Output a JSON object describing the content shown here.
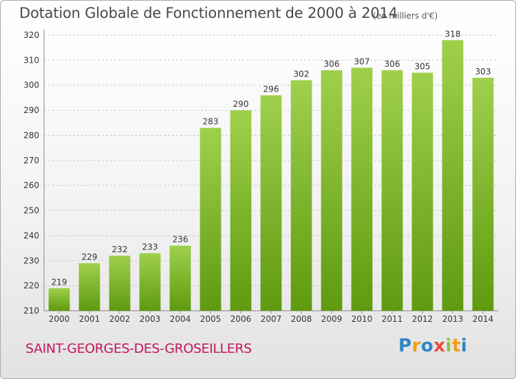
{
  "header": {
    "title": "Dotation Globale de Fonctionnement de 2000 à 2014",
    "unit": "(en milliers d'€)"
  },
  "footer": {
    "commune": "SAINT-GEORGES-DES-GROSEILLERS",
    "logo": "Proxiti"
  },
  "logo_letters": [
    {
      "ch": "P",
      "color": "#2e86c8"
    },
    {
      "ch": "r",
      "color": "#f39c12"
    },
    {
      "ch": "o",
      "color": "#2e86c8"
    },
    {
      "ch": "x",
      "color": "#e74c3c"
    },
    {
      "ch": "i",
      "color": "#8bc34a"
    },
    {
      "ch": "t",
      "color": "#f39c12"
    },
    {
      "ch": "i",
      "color": "#2e86c8"
    }
  ],
  "chart_data": {
    "type": "bar",
    "title": "Dotation Globale de Fonctionnement de 2000 à 2014",
    "subtitle": "(en milliers d'€)",
    "categories": [
      "2000",
      "2001",
      "2002",
      "2003",
      "2004",
      "2005",
      "2006",
      "2007",
      "2008",
      "2009",
      "2010",
      "2011",
      "2012",
      "2013",
      "2014"
    ],
    "values": [
      219,
      229,
      232,
      233,
      236,
      283,
      290,
      296,
      302,
      306,
      307,
      306,
      305,
      318,
      303
    ],
    "ylim": [
      210,
      320
    ],
    "yticks": [
      210,
      220,
      230,
      240,
      250,
      260,
      270,
      280,
      290,
      300,
      310,
      320
    ],
    "grid": true,
    "bar_color_top": "#9fd04c",
    "bar_color_bottom": "#5f9a10",
    "xlabel": "",
    "ylabel": ""
  }
}
